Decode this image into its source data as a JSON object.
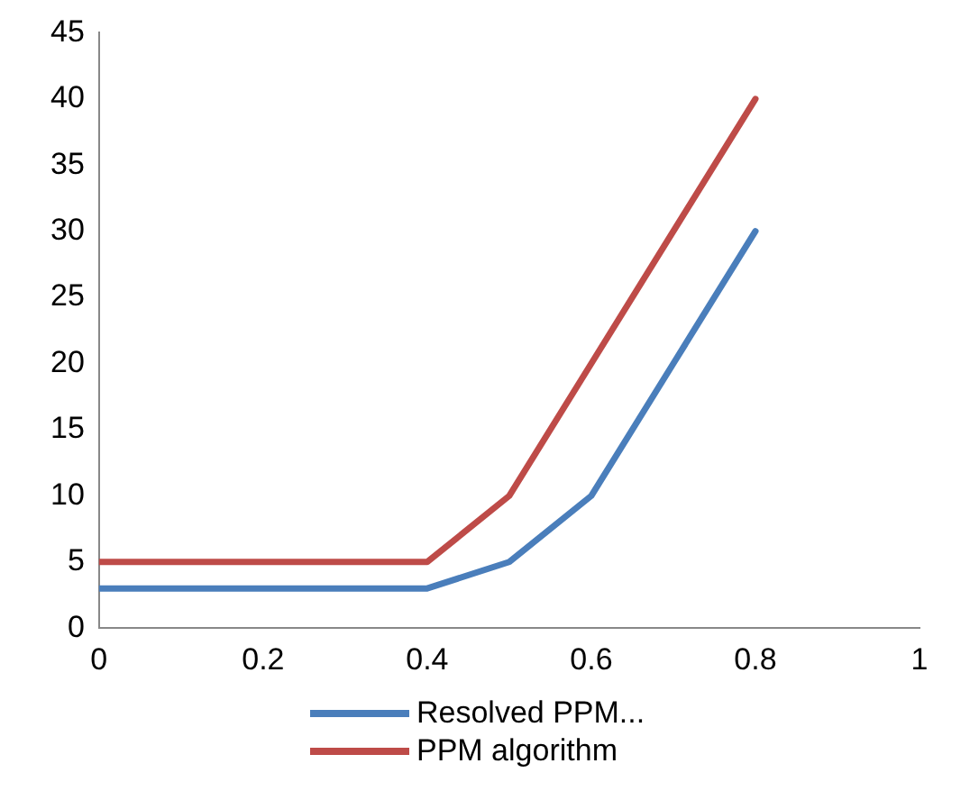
{
  "chart_data": {
    "type": "line",
    "x": [
      0,
      0.4,
      0.5,
      0.6,
      0.7,
      0.8
    ],
    "series": [
      {
        "name": "Resolved PPM...",
        "color": "#4a7ebb",
        "values": [
          3,
          3,
          5,
          10,
          20,
          30
        ]
      },
      {
        "name": "PPM algorithm",
        "color": "#be4b48",
        "values": [
          5,
          5,
          10,
          20,
          30,
          40
        ]
      }
    ],
    "xlim": [
      0,
      1
    ],
    "xticks": [
      0,
      0.2,
      0.4,
      0.6,
      0.8,
      1
    ],
    "ylim": [
      0,
      45
    ],
    "yticks": [
      0,
      5,
      10,
      15,
      20,
      25,
      30,
      35,
      40,
      45
    ],
    "grid": false,
    "legend": "bottom",
    "marker": "none",
    "line_style": "solid"
  }
}
